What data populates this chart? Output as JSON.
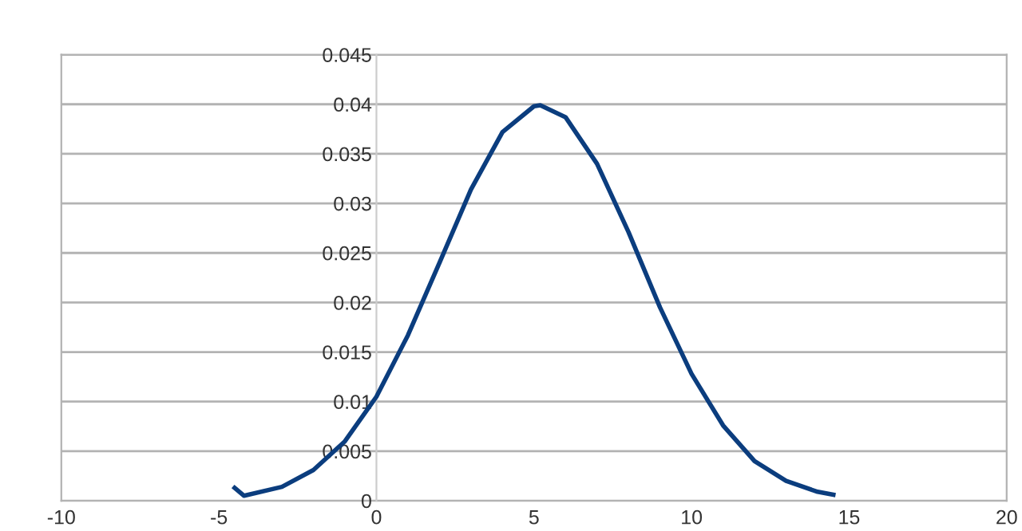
{
  "chart_data": {
    "type": "line",
    "grid": "y",
    "marker": "none",
    "line_style": "solid",
    "xlim": [
      -10,
      20
    ],
    "xticks": [
      -10,
      -5,
      0,
      5,
      10,
      15,
      20
    ],
    "ylim": [
      0,
      0.045
    ],
    "yticks": [
      0,
      0.005,
      0.01,
      0.015,
      0.02,
      0.025,
      0.03,
      0.035,
      0.04,
      0.045
    ],
    "series": [
      {
        "color": "#0b3d7e",
        "x": [
          -4.5,
          -4.2,
          -3,
          -2,
          -1,
          0,
          1,
          2,
          3,
          4,
          5,
          5.2,
          6,
          7,
          8,
          9,
          10,
          11,
          12,
          13,
          14,
          14.5
        ],
        "values": [
          0.0013,
          0.0005,
          0.0014,
          0.0031,
          0.006,
          0.0105,
          0.0167,
          0.024,
          0.0314,
          0.0372,
          0.0398,
          0.0399,
          0.0387,
          0.034,
          0.0271,
          0.0195,
          0.0128,
          0.0076,
          0.004,
          0.002,
          0.0009,
          0.0006
        ]
      }
    ]
  }
}
